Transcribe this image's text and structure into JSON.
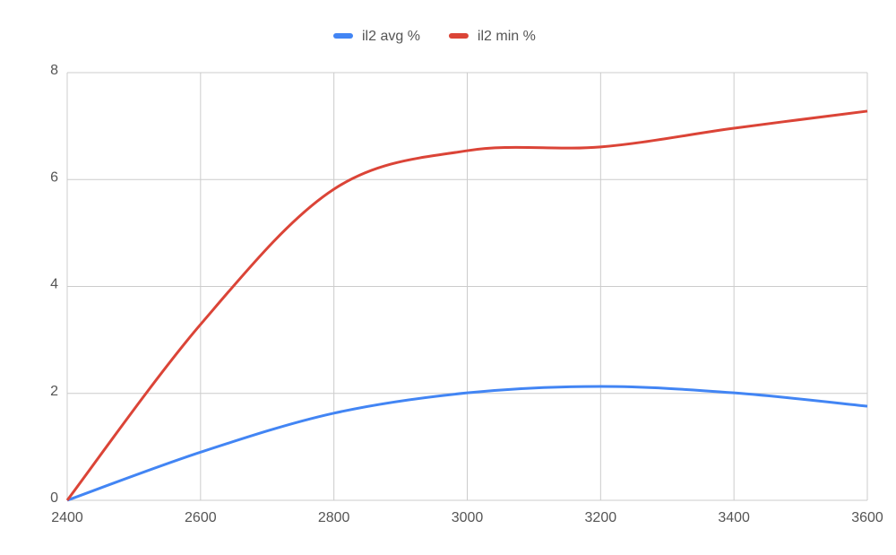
{
  "chart_data": {
    "type": "line",
    "x": [
      2400,
      2600,
      2800,
      3000,
      3200,
      3400,
      3600
    ],
    "series": [
      {
        "name": "il2 avg %",
        "color": "#4285f4",
        "values": [
          0,
          0.9,
          1.63,
          2.01,
          2.13,
          2.01,
          1.76
        ]
      },
      {
        "name": "il2 min %",
        "color": "#db4437",
        "values": [
          0,
          3.29,
          5.82,
          6.54,
          6.61,
          6.96,
          7.28
        ]
      }
    ],
    "xlim": [
      2400,
      3600
    ],
    "xticks": [
      2400,
      2600,
      2800,
      3000,
      3200,
      3400,
      3600
    ],
    "ylim": [
      0,
      8
    ],
    "yticks": [
      0,
      2,
      4,
      6,
      8
    ],
    "grid": true,
    "legend": "top",
    "smooth": true
  }
}
